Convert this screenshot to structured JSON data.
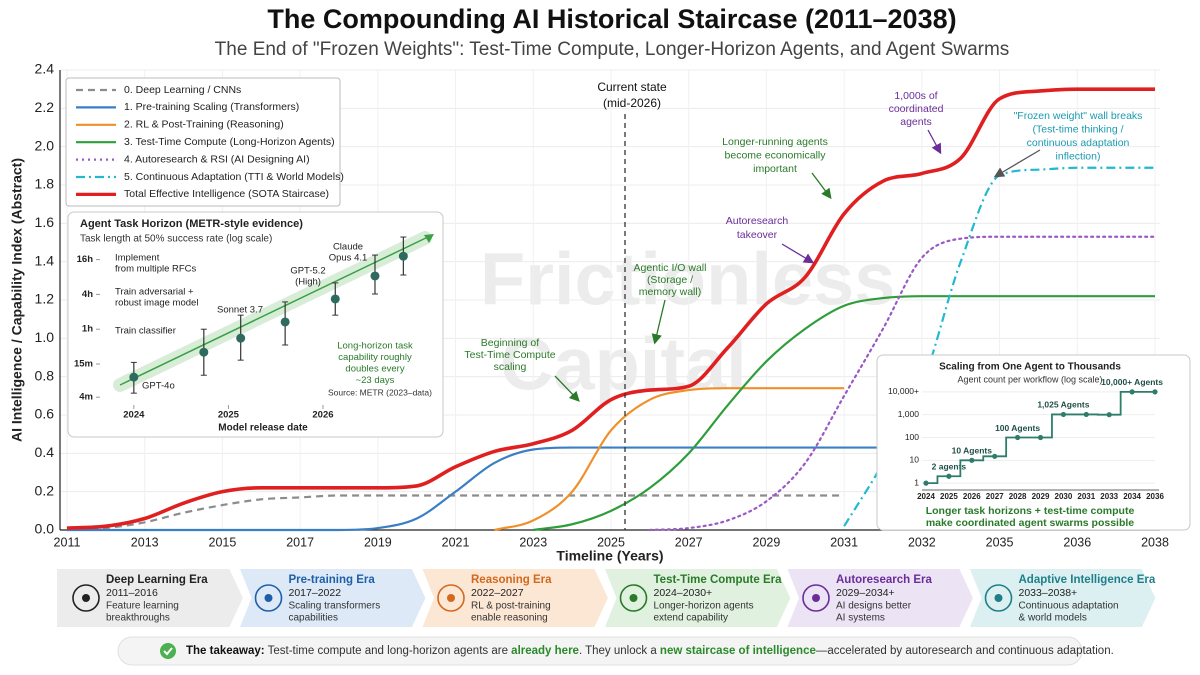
{
  "chart_data": [
    {
      "type": "line",
      "title": "The Compounding AI Historical Staircase (2011–2038)",
      "subtitle": "The End of \"Frozen Weights\": Test-Time Compute, Longer-Horizon Agents, and Agent Swarms",
      "x_label": "Timeline (Years)",
      "y_label": "AI Intelligence / Capability Index (Abstract)",
      "categories": [
        "2011",
        null,
        "2013",
        null,
        "2015",
        null,
        "2017",
        null,
        "2019",
        null,
        "2021",
        null,
        "2023",
        null,
        "2025",
        null,
        "2027",
        null,
        "2029",
        null,
        "2031",
        null,
        "2032",
        null,
        "2035",
        null,
        "2036",
        null,
        "2038"
      ],
      "ylim": [
        0,
        2.4
      ],
      "yticks": [
        {
          "value": 0,
          "label": "0.0"
        },
        0.2,
        0.4,
        0.6,
        0.8,
        {
          "value": 1,
          "label": "1.0"
        },
        1.2,
        1.4,
        1.6,
        1.8,
        {
          "value": 2,
          "label": "2.0"
        },
        2.2,
        2.4
      ],
      "grid": true,
      "legend": "upper left",
      "series": [
        {
          "name": "0. Deep Learning / CNNs",
          "color": "#8c8c8c",
          "dash": "dashed",
          "values": [
            0,
            0.01,
            0.04,
            0.09,
            0.13,
            0.16,
            0.17,
            0.18,
            0.18,
            0.18,
            0.18,
            0.18,
            0.18,
            0.18,
            0.18,
            0.18,
            0.18,
            0.18,
            0.18,
            0.18,
            0.18,
            null,
            null,
            null,
            null,
            null,
            null,
            null,
            null
          ]
        },
        {
          "name": "1. Pre-training Scaling (Transformers)",
          "color": "#3a7fc4",
          "dash": "solid",
          "values": [
            0,
            0,
            0,
            0,
            0,
            0,
            0,
            0,
            0.01,
            0.06,
            0.2,
            0.35,
            0.42,
            0.43,
            0.43,
            0.43,
            0.43,
            0.43,
            0.43,
            0.43,
            0.43,
            0.43,
            0.43,
            0.43,
            0.43,
            0.43,
            0.43,
            0.43,
            0.43
          ]
        },
        {
          "name": "2. RL & Post-Training (Reasoning)",
          "color": "#f0902a",
          "dash": "solid",
          "values": [
            null,
            null,
            null,
            null,
            null,
            null,
            null,
            null,
            null,
            null,
            null,
            0,
            0.05,
            0.2,
            0.52,
            0.68,
            0.73,
            0.74,
            0.74,
            0.74,
            0.74,
            null,
            null,
            null,
            null,
            null,
            null,
            null,
            null
          ]
        },
        {
          "name": "3. Test-Time Compute (Long-Horizon Agents)",
          "color": "#2e9e3a",
          "dash": "solid",
          "values": [
            null,
            null,
            null,
            null,
            null,
            null,
            null,
            null,
            null,
            null,
            null,
            null,
            0,
            0.03,
            0.1,
            0.22,
            0.4,
            0.65,
            0.88,
            1.05,
            1.17,
            1.21,
            1.22,
            1.22,
            1.22,
            1.22,
            1.22,
            1.22,
            1.22
          ]
        },
        {
          "name": "4. Autoresearch & RSI (AI Designing AI)",
          "color": "#9b59c6",
          "dash": "dotted",
          "values": [
            null,
            null,
            null,
            null,
            null,
            null,
            null,
            null,
            null,
            null,
            null,
            null,
            null,
            null,
            null,
            0,
            0.01,
            0.05,
            0.15,
            0.35,
            0.7,
            1.05,
            1.42,
            1.52,
            1.53,
            1.53,
            1.53,
            1.53,
            1.53
          ]
        },
        {
          "name": "5. Continuous Adaptation (TTI & World Models)",
          "color": "#22b8cf",
          "dash": "dashdot",
          "values": [
            null,
            null,
            null,
            null,
            null,
            null,
            null,
            null,
            null,
            null,
            null,
            null,
            null,
            null,
            null,
            null,
            null,
            null,
            null,
            null,
            0.02,
            0.35,
            0.75,
            1.4,
            1.85,
            1.88,
            1.89,
            1.89,
            1.89
          ]
        },
        {
          "name": "Total Effective Intelligence (SOTA Staircase)",
          "color": "#e02020",
          "dash": "solid",
          "values": [
            0.01,
            0.02,
            0.06,
            0.14,
            0.2,
            0.22,
            0.22,
            0.22,
            0.22,
            0.23,
            0.33,
            0.41,
            0.45,
            0.52,
            0.68,
            0.73,
            0.75,
            0.95,
            1.18,
            1.32,
            1.65,
            1.82,
            1.86,
            1.94,
            2.25,
            2.29,
            2.3,
            2.3,
            2.3
          ]
        }
      ],
      "annotations": [
        {
          "lines": [
            "Current state",
            "(mid-2026)"
          ],
          "color": "#111111"
        },
        {
          "lines": [
            "Beginning of",
            "Test-Time Compute",
            "scaling"
          ],
          "color": "#2a7a2a"
        },
        {
          "lines": [
            "Agentic I/O wall",
            "(Storage /",
            "memory wall)"
          ],
          "color": "#2a7a2a"
        },
        {
          "lines": [
            "Longer-running agents",
            "become economically",
            "important"
          ],
          "color": "#2a7a2a"
        },
        {
          "lines": [
            "Autoresearch",
            "takeover"
          ],
          "color": "#6a2d9a"
        },
        {
          "lines": [
            "1,000s of",
            "coordinated",
            "agents"
          ],
          "color": "#6a2d9a"
        },
        {
          "lines": [
            "\"Frozen weight\" wall breaks",
            "(Test-time thinking /",
            "continuous adaptation",
            "inflection)"
          ],
          "color": "#1a9bb0"
        }
      ],
      "watermark": [
        "Frictionless",
        "Capital"
      ]
    },
    {
      "type": "errorbar",
      "title": "Agent Task Horizon (METR-style evidence)",
      "subtitle": "Task length at 50% success rate (log scale)",
      "x_label": "Model release date",
      "x": [
        2024.0,
        2024.74,
        2025.13,
        2025.6,
        2026.13,
        2026.55,
        2026.85
      ],
      "values": [
        8.9,
        24,
        42,
        80,
        200,
        500,
        1100
      ],
      "low": [
        4.7,
        9.6,
        17.5,
        32,
        105,
        244,
        520
      ],
      "high": [
        16,
        60,
        105,
        178,
        380,
        1150,
        2360
      ],
      "point_labels": [
        [
          "GPT-4o"
        ],
        null,
        [
          "Sonnet 3.7"
        ],
        null,
        [
          "GPT-5.2",
          "(High)"
        ],
        [
          "Claude",
          "Opus 4.1"
        ],
        null
      ],
      "xlim": [
        2023.6,
        2027.1
      ],
      "xticks": [
        2024,
        2025,
        2026
      ],
      "ylim": [
        2.5,
        3000
      ],
      "yticks": [
        {
          "value": 4,
          "label": "4m"
        },
        {
          "value": 15,
          "label": "15m"
        },
        {
          "value": 60,
          "label": "1h"
        },
        {
          "value": 240,
          "label": "4h"
        },
        {
          "value": 960,
          "label": "16h"
        }
      ],
      "log_scale": true,
      "color": "#2e6b5e",
      "tasks": [
        [
          "Implement",
          "from multiple RFCs"
        ],
        [
          "Train adversarial +",
          "robust image model"
        ],
        [
          "Train classifier"
        ]
      ],
      "note": [
        "Long-horizon task",
        "capability roughly",
        "doubles every",
        "~23 days"
      ],
      "source": "Source: METR (2023–data)"
    },
    {
      "type": "step",
      "title": "Scaling from One Agent to Thousands",
      "subtitle": "Agent count per workflow (log scale)",
      "categories": [
        "2024",
        "2025",
        "2026",
        "2027",
        "2028",
        "2029",
        "2030",
        "2031",
        "2033",
        "2034",
        "2036"
      ],
      "values": [
        1,
        2,
        10,
        15,
        100,
        100,
        1025,
        1025,
        1000,
        10000,
        10000
      ],
      "value_labels": [
        null,
        "2 agents",
        "10 Agents",
        null,
        "100 Agents",
        null,
        "1,025 Agents",
        null,
        null,
        "10,000+ Agents",
        null
      ],
      "ylim": [
        0.5,
        20000
      ],
      "yticks": [
        1,
        10,
        100,
        {
          "value": 1000,
          "label": "1,000"
        },
        {
          "value": 10000,
          "label": "10,000+"
        }
      ],
      "log_scale": true,
      "color": "#2e7d6b",
      "caption": [
        "Longer task horizons + test-time compute",
        "make coordinated agent swarms possible"
      ]
    }
  ],
  "eras": [
    {
      "name": "Deep Learning Era",
      "years": "2011–2016",
      "description": [
        "Feature learning",
        "breakthroughs"
      ]
    },
    {
      "name": "Pre-training Era",
      "years": "2017–2022",
      "description": [
        "Scaling transformers",
        "capabilities"
      ]
    },
    {
      "name": "Reasoning Era",
      "years": "2022–2027",
      "description": [
        "RL & post-training",
        "enable reasoning"
      ]
    },
    {
      "name": "Test-Time Compute Era",
      "years": "2024–2030+",
      "description": [
        "Longer-horizon agents",
        "extend capability"
      ]
    },
    {
      "name": "Autoresearch Era",
      "years": "2029–2034+",
      "description": [
        "AI designs better",
        "AI systems"
      ]
    },
    {
      "name": "Adaptive Intelligence Era",
      "years": "2033–2038+",
      "description": [
        "Continuous adaptation",
        "& world models"
      ]
    }
  ],
  "takeaway": {
    "label": "The takeaway:",
    "parts": [
      {
        "text": " Test-time compute and long-horizon agents are ",
        "emphasis": false
      },
      {
        "text": "already here",
        "emphasis": true
      },
      {
        "text": ". They unlock a ",
        "emphasis": false
      },
      {
        "text": "new staircase of intelligence",
        "emphasis": true
      },
      {
        "text": "—accelerated by autoresearch and continuous adaptation.",
        "emphasis": false
      }
    ]
  }
}
